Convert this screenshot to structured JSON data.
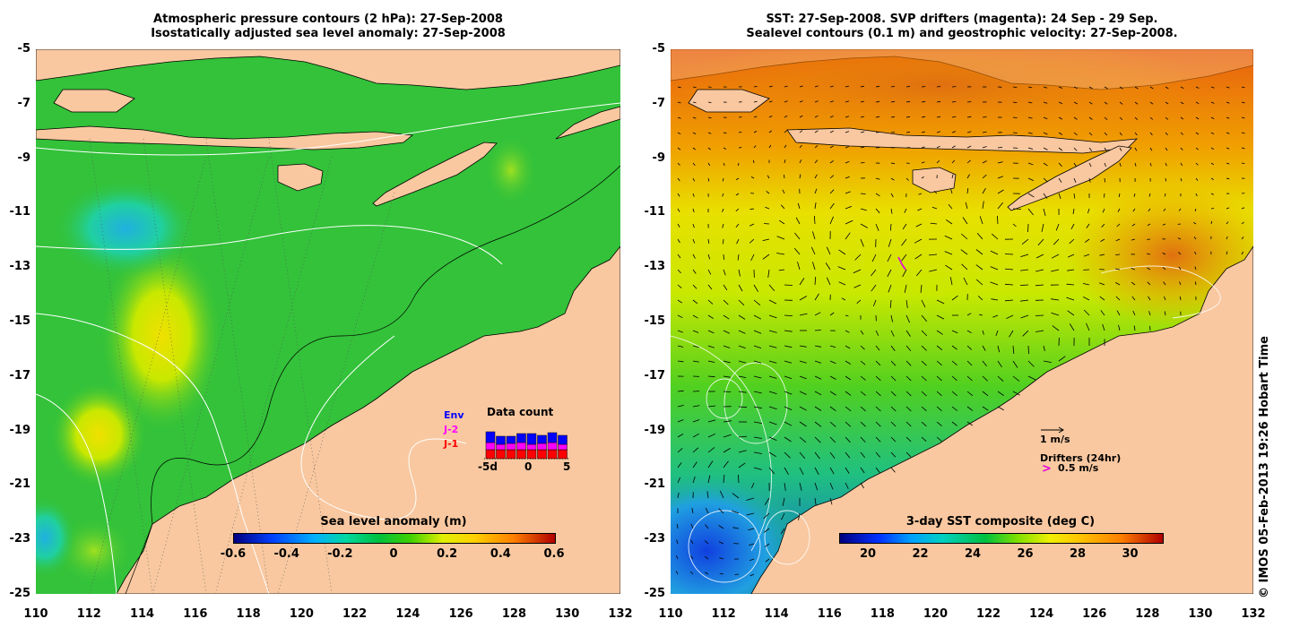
{
  "left_panel": {
    "title_line1": "Atmospheric pressure contours (2 hPa): 27-Sep-2008",
    "title_line2": "Isostatically adjusted sea level anomaly: 27-Sep-2008",
    "colorbar_title": "Sea level anomaly (m)",
    "colorbar_ticks": [
      "-0.6",
      "-0.4",
      "-0.2",
      "0",
      "0.2",
      "0.4",
      "0.6"
    ],
    "data_count": {
      "title": "Data count",
      "series": [
        "Env",
        "J-2",
        "J-1"
      ],
      "series_colors": [
        "#0000ff",
        "#ff00ff",
        "#ff0000"
      ],
      "axis_labels": [
        "-5d",
        "0",
        "5"
      ]
    }
  },
  "right_panel": {
    "title_line1": "SST: 27-Sep-2008. SVP drifters (magenta): 24 Sep - 29 Sep.",
    "title_line2": "Sealevel contours (0.1 m) and geostrophic velocity: 27-Sep-2008.",
    "colorbar_title": "3-day SST composite (deg C)",
    "colorbar_ticks": [
      "20",
      "22",
      "24",
      "26",
      "28",
      "30"
    ],
    "velocity_scale_label": "1 m/s",
    "drifters_label": "Drifters (24hr)",
    "drifters_speed_label": "0.5 m/s"
  },
  "y_axis_labels": [
    "-5",
    "-7",
    "-9",
    "-11",
    "-13",
    "-15",
    "-17",
    "-19",
    "-21",
    "-23",
    "-25"
  ],
  "left_x_axis_labels": [
    "110",
    "112",
    "114",
    "116",
    "118",
    "120",
    "122",
    "124",
    "126",
    "128",
    "130",
    "132"
  ],
  "right_x_axis_labels": [
    "110",
    "112",
    "114",
    "116",
    "118",
    "120",
    "122",
    "124",
    "126",
    "128",
    "130",
    "132"
  ],
  "credit": "© IMOS 05-Feb-2013 19:26 Hobart Time",
  "colors": {
    "land": "#f9c8a0",
    "ocean_green": "#33c23a",
    "sst_orange": "#f08a10"
  }
}
